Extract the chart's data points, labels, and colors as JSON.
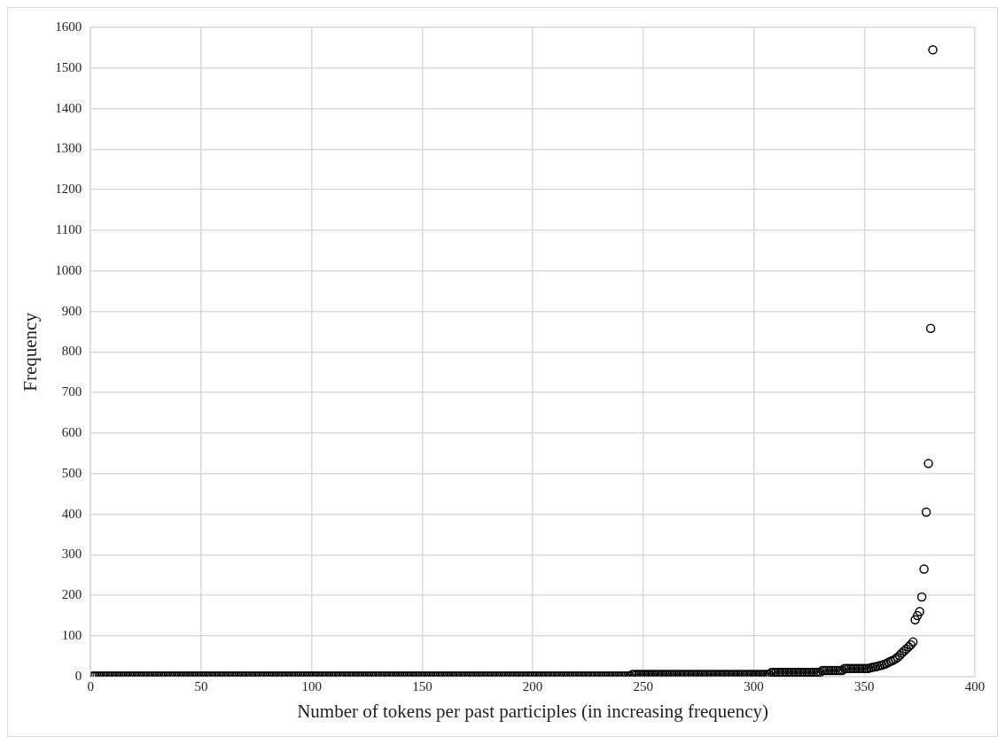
{
  "chart_data": {
    "type": "scatter",
    "xlabel": "Number of tokens per past participles (in increasing frequency)",
    "ylabel": "Frequency",
    "xlim": [
      0,
      400
    ],
    "xticks": [
      0,
      50,
      100,
      150,
      200,
      250,
      300,
      350,
      400
    ],
    "ylim": [
      0,
      1600
    ],
    "yticks": [
      0,
      100,
      200,
      300,
      400,
      500,
      600,
      700,
      800,
      900,
      1000,
      1100,
      1200,
      1300,
      1400,
      1500,
      1600
    ],
    "grid": true,
    "legend": false,
    "marker": "circle",
    "series": [
      {
        "color": "#000000",
        "x": [
          1,
          2,
          3,
          4,
          5,
          6,
          7,
          8,
          9,
          10,
          11,
          12,
          13,
          14,
          15,
          16,
          17,
          18,
          19,
          20,
          21,
          22,
          23,
          24,
          25,
          26,
          27,
          28,
          29,
          30,
          31,
          32,
          33,
          34,
          35,
          36,
          37,
          38,
          39,
          40,
          41,
          42,
          43,
          44,
          45,
          46,
          47,
          48,
          49,
          50,
          51,
          52,
          53,
          54,
          55,
          56,
          57,
          58,
          59,
          60,
          61,
          62,
          63,
          64,
          65,
          66,
          67,
          68,
          69,
          70,
          71,
          72,
          73,
          74,
          75,
          76,
          77,
          78,
          79,
          80,
          81,
          82,
          83,
          84,
          85,
          86,
          87,
          88,
          89,
          90,
          91,
          92,
          93,
          94,
          95,
          96,
          97,
          98,
          99,
          100,
          101,
          102,
          103,
          104,
          105,
          106,
          107,
          108,
          109,
          110,
          111,
          112,
          113,
          114,
          115,
          116,
          117,
          118,
          119,
          120,
          121,
          122,
          123,
          124,
          125,
          126,
          127,
          128,
          129,
          130,
          131,
          132,
          133,
          134,
          135,
          136,
          137,
          138,
          139,
          140,
          141,
          142,
          143,
          144,
          145,
          146,
          147,
          148,
          149,
          150,
          151,
          152,
          153,
          154,
          155,
          156,
          157,
          158,
          159,
          160,
          161,
          162,
          163,
          164,
          165,
          166,
          167,
          168,
          169,
          170,
          171,
          172,
          173,
          174,
          175,
          176,
          177,
          178,
          179,
          180,
          181,
          182,
          183,
          184,
          185,
          186,
          187,
          188,
          189,
          190,
          191,
          192,
          193,
          194,
          195,
          196,
          197,
          198,
          199,
          200,
          201,
          202,
          203,
          204,
          205,
          206,
          207,
          208,
          209,
          210,
          211,
          212,
          213,
          214,
          215,
          216,
          217,
          218,
          219,
          220,
          221,
          222,
          223,
          224,
          225,
          226,
          227,
          228,
          229,
          230,
          231,
          232,
          233,
          234,
          235,
          236,
          237,
          238,
          239,
          240,
          241,
          242,
          243,
          244,
          245,
          246,
          247,
          248,
          249,
          250,
          251,
          252,
          253,
          254,
          255,
          256,
          257,
          258,
          259,
          260,
          261,
          262,
          263,
          264,
          265,
          266,
          267,
          268,
          269,
          270,
          271,
          272,
          273,
          274,
          275,
          276,
          277,
          278,
          279,
          280,
          281,
          282,
          283,
          284,
          285,
          286,
          287,
          288,
          289,
          290,
          291,
          292,
          293,
          294,
          295,
          296,
          297,
          298,
          299,
          300,
          301,
          302,
          303,
          304,
          305,
          306,
          307,
          308,
          309,
          310,
          311,
          312,
          313,
          314,
          315,
          316,
          317,
          318,
          319,
          320,
          321,
          322,
          323,
          324,
          325,
          326,
          327,
          328,
          329,
          330,
          331,
          332,
          333,
          334,
          335,
          336,
          337,
          338,
          339,
          340,
          341,
          342,
          343,
          344,
          345,
          346,
          347,
          348,
          349,
          350,
          351,
          352,
          353,
          354,
          355,
          356,
          357,
          358,
          359,
          360,
          361,
          362,
          363,
          364,
          365,
          366,
          367,
          368,
          369,
          370,
          371,
          372,
          373,
          374,
          375,
          376,
          377,
          378,
          379,
          380,
          381
        ],
        "values": [
          1,
          1,
          1,
          1,
          1,
          1,
          1,
          1,
          1,
          1,
          1,
          1,
          1,
          1,
          1,
          1,
          1,
          1,
          1,
          1,
          1,
          1,
          1,
          1,
          1,
          1,
          1,
          1,
          1,
          1,
          1,
          1,
          1,
          1,
          1,
          1,
          1,
          1,
          1,
          1,
          1,
          1,
          1,
          1,
          1,
          1,
          1,
          1,
          1,
          1,
          1,
          1,
          1,
          1,
          1,
          1,
          1,
          1,
          1,
          1,
          1,
          1,
          1,
          1,
          1,
          1,
          1,
          1,
          1,
          1,
          1,
          1,
          1,
          1,
          1,
          1,
          1,
          1,
          1,
          1,
          1,
          1,
          1,
          1,
          1,
          1,
          1,
          1,
          1,
          1,
          1,
          1,
          1,
          1,
          1,
          1,
          1,
          1,
          1,
          1,
          1,
          1,
          1,
          1,
          1,
          1,
          1,
          1,
          1,
          1,
          1,
          1,
          1,
          1,
          1,
          1,
          1,
          1,
          1,
          1,
          1,
          1,
          1,
          1,
          1,
          1,
          1,
          1,
          1,
          1,
          1,
          1,
          1,
          1,
          1,
          1,
          1,
          1,
          1,
          1,
          1,
          1,
          1,
          1,
          1,
          1,
          1,
          1,
          1,
          1,
          1,
          1,
          1,
          1,
          1,
          1,
          1,
          1,
          1,
          1,
          1,
          1,
          1,
          1,
          1,
          1,
          1,
          1,
          1,
          1,
          1,
          1,
          1,
          1,
          1,
          1,
          1,
          1,
          1,
          1,
          1,
          1,
          1,
          1,
          1,
          1,
          1,
          1,
          1,
          1,
          1,
          1,
          1,
          1,
          1,
          1,
          1,
          1,
          1,
          1,
          1,
          1,
          1,
          1,
          1,
          1,
          1,
          1,
          1,
          1,
          1,
          1,
          1,
          1,
          1,
          1,
          1,
          1,
          1,
          1,
          1,
          1,
          1,
          1,
          1,
          1,
          1,
          1,
          1,
          1,
          1,
          1,
          1,
          1,
          1,
          1,
          1,
          1,
          1,
          1,
          1,
          1,
          1,
          1,
          5,
          5,
          5,
          5,
          5,
          5,
          5,
          5,
          5,
          5,
          5,
          5,
          5,
          5,
          5,
          5,
          5,
          5,
          5,
          5,
          5,
          5,
          5,
          5,
          5,
          5,
          5,
          5,
          5,
          5,
          5,
          5,
          5,
          5,
          5,
          5,
          5,
          5,
          5,
          5,
          5,
          5,
          5,
          5,
          5,
          5,
          5,
          5,
          5,
          5,
          5,
          5,
          5,
          5,
          5,
          5,
          5,
          5,
          5,
          5,
          5,
          5,
          5,
          10,
          10,
          10,
          10,
          10,
          10,
          10,
          10,
          10,
          10,
          10,
          10,
          10,
          10,
          10,
          10,
          10,
          10,
          10,
          10,
          10,
          10,
          10,
          15,
          15,
          15,
          15,
          15,
          15,
          15,
          15,
          15,
          15,
          20,
          20,
          20,
          20,
          20,
          20,
          20,
          20,
          20,
          20,
          20,
          20,
          22,
          23,
          24,
          25,
          27,
          28,
          30,
          32,
          35,
          38,
          40,
          43,
          47,
          52,
          58,
          63,
          68,
          73,
          78,
          85,
          140,
          150,
          160,
          196,
          265,
          405,
          525,
          858,
          1545
        ]
      }
    ]
  }
}
